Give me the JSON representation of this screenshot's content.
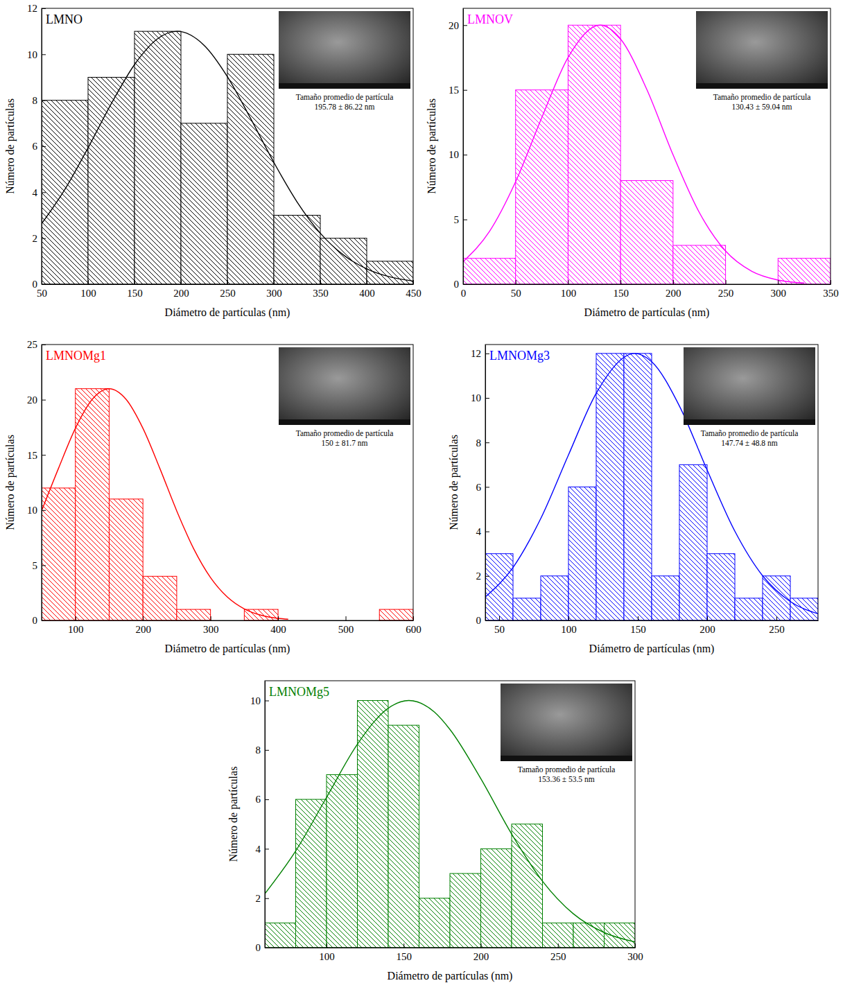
{
  "chart_data": [
    {
      "type": "histogram",
      "title": "LMNO",
      "x_label": "Diámetro de partículas (nm)",
      "y_label": "Número de partículas",
      "color": "#000000",
      "bins": [
        50,
        100,
        150,
        200,
        250,
        300,
        350,
        400,
        450
      ],
      "values": [
        8,
        9,
        11,
        7,
        10,
        3,
        2,
        1
      ],
      "xlim": [
        50,
        450
      ],
      "ylim": [
        0,
        12
      ],
      "xticks": [
        50,
        100,
        150,
        200,
        250,
        300,
        350,
        400,
        450
      ],
      "yticks": [
        0,
        2,
        4,
        6,
        8,
        10,
        12
      ],
      "fit": {
        "x": [
          50,
          75,
          100,
          125,
          150,
          175,
          195.78,
          225,
          250,
          275,
          300,
          325,
          350,
          375,
          400,
          425,
          450
        ],
        "values": [
          2.63,
          4.12,
          5.93,
          7.85,
          9.55,
          10.68,
          11,
          10.39,
          9.03,
          7.21,
          5.3,
          3.58,
          2.22,
          1.27,
          0.67,
          0.32,
          0.14
        ]
      },
      "annotations": [
        "Tamaño promedio de partícula",
        "195.78 ± 86.22 nm"
      ]
    },
    {
      "type": "histogram",
      "title": "LMNOV",
      "x_label": "Diámetro de partículas (nm)",
      "y_label": "Número de partículas",
      "color": "#ff00ff",
      "bins": [
        0,
        50,
        100,
        150,
        200,
        250,
        300,
        350
      ],
      "values": [
        2,
        15,
        20,
        8,
        3,
        0,
        2
      ],
      "xlim": [
        0,
        350
      ],
      "ylim": [
        0,
        21.3
      ],
      "xticks": [
        0,
        50,
        100,
        150,
        200,
        250,
        300,
        350
      ],
      "yticks": [
        0,
        5,
        10,
        15,
        20
      ],
      "fit": {
        "x": [
          0,
          25,
          50,
          75,
          100,
          130.43,
          150,
          175,
          200,
          225,
          250,
          275,
          300,
          325
        ],
        "values": [
          1.74,
          4.06,
          7.91,
          12.87,
          17.51,
          20,
          18.93,
          15.04,
          9.99,
          5.54,
          2.57,
          1,
          0.32,
          0.09
        ]
      },
      "annotations": [
        "Tamaño promedio de partícula",
        "130.43 ± 59.04 nm"
      ]
    },
    {
      "type": "histogram",
      "title": "LMNOMg1",
      "x_label": "Diámetro de partículas (nm)",
      "y_label": "Número de partículas",
      "color": "#ff0000",
      "bins": [
        50,
        100,
        150,
        200,
        250,
        300,
        350,
        400,
        450,
        500,
        550,
        600
      ],
      "values": [
        12,
        21,
        11,
        4,
        1,
        0,
        1,
        0,
        0,
        0,
        1
      ],
      "xlim": [
        50,
        600
      ],
      "ylim": [
        0,
        25
      ],
      "xticks": [
        100,
        200,
        300,
        400,
        500,
        600
      ],
      "yticks": [
        0,
        5,
        10,
        15,
        20,
        25
      ],
      "fit": {
        "x": [
          50,
          75,
          100,
          125,
          150,
          175,
          200,
          225,
          250,
          275,
          300,
          325,
          350,
          375,
          400,
          415
        ],
        "values": [
          9.93,
          13.78,
          17.41,
          20.04,
          21,
          20.04,
          17.41,
          13.78,
          9.93,
          6.51,
          3.89,
          2.12,
          1.05,
          0.47,
          0.19,
          0.11
        ]
      },
      "annotations": [
        "Tamaño promedio de partícula",
        "150 ± 81.7 nm"
      ]
    },
    {
      "type": "histogram",
      "title": "LMNOMg3",
      "x_label": "Diámetro de partículas (nm)",
      "y_label": "Número de partículas",
      "color": "#0000ff",
      "bins": [
        40,
        60,
        80,
        100,
        120,
        140,
        160,
        180,
        200,
        220,
        240,
        260,
        280
      ],
      "values": [
        3,
        1,
        2,
        6,
        12,
        12,
        2,
        7,
        3,
        1,
        2,
        1
      ],
      "xlim": [
        40,
        280
      ],
      "ylim": [
        0,
        12.4
      ],
      "xticks": [
        50,
        100,
        150,
        200,
        250
      ],
      "yticks": [
        0,
        2,
        4,
        6,
        8,
        10,
        12
      ],
      "fit": {
        "x": [
          40,
          60,
          80,
          100,
          120,
          147.74,
          160,
          180,
          200,
          220,
          240,
          260,
          280
        ],
        "values": [
          1.05,
          2.38,
          4.58,
          7.44,
          10.21,
          12,
          11.63,
          9.64,
          6.76,
          4.01,
          2.01,
          0.85,
          0.3
        ]
      },
      "annotations": [
        "Tamaño promedio de partícula",
        "147.74 ± 48.8 nm"
      ]
    },
    {
      "type": "histogram",
      "title": "LMNOMg5",
      "x_label": "Diámetro de partículas (nm)",
      "y_label": "Número de partículas",
      "color": "#008000",
      "bins": [
        60,
        80,
        100,
        120,
        140,
        160,
        180,
        200,
        220,
        240,
        260,
        280,
        300
      ],
      "values": [
        1,
        6,
        7,
        10,
        9,
        2,
        3,
        4,
        5,
        1,
        1,
        1
      ],
      "xlim": [
        60,
        300
      ],
      "ylim": [
        0,
        10.8
      ],
      "xticks": [
        100,
        150,
        200,
        250,
        300
      ],
      "yticks": [
        0,
        2,
        4,
        6,
        8,
        10
      ],
      "fit": {
        "x": [
          60,
          80,
          100,
          120,
          140,
          153.36,
          170,
          180,
          200,
          220,
          240,
          260,
          280,
          300
        ],
        "values": [
          2.18,
          3.91,
          6.08,
          8.23,
          9.69,
          10,
          9.53,
          8.83,
          6.84,
          4.6,
          2.69,
          1.37,
          0.61,
          0.23
        ]
      },
      "annotations": [
        "Tamaño promedio de partícula",
        "153.36 ± 53.5 nm"
      ]
    }
  ]
}
